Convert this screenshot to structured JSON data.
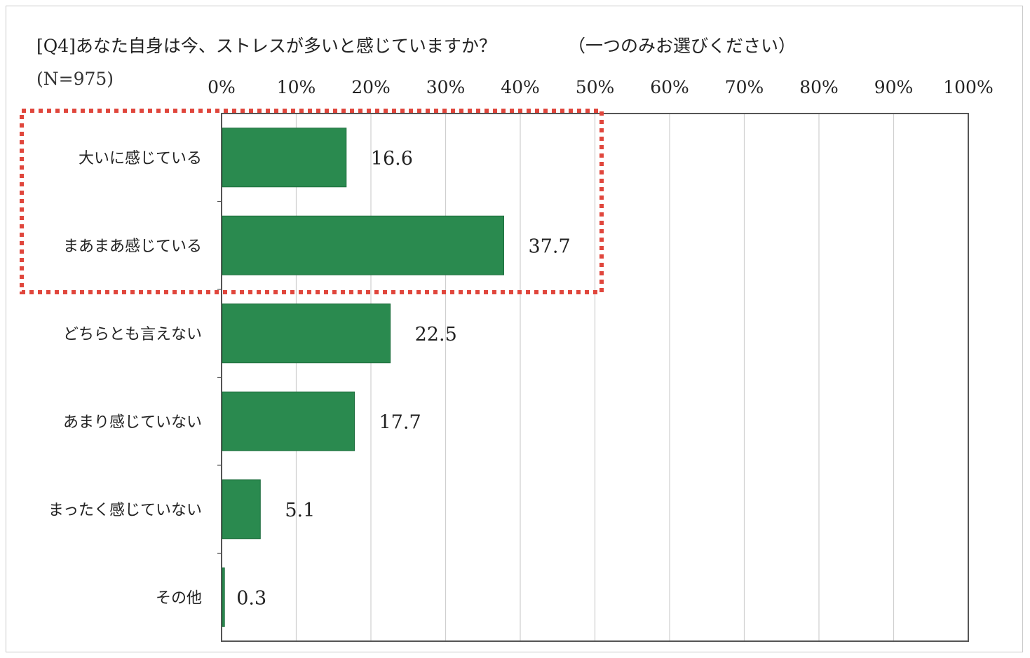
{
  "chart_data": {
    "type": "bar",
    "orientation": "horizontal",
    "title": "[Q4]あなた自身は今、ストレスが多いと感じていますか？",
    "title_note": "（一つのみお選びください）",
    "sample_size": "(N=975)",
    "categories": [
      "大いに感じている",
      "まあまあ感じている",
      "どちらとも言えない",
      "あまり感じていない",
      "まったく感じていない",
      "その他"
    ],
    "values": [
      16.6,
      37.7,
      22.5,
      17.7,
      5.1,
      0.3
    ],
    "value_labels": [
      "16.6",
      "37.7",
      "22.5",
      "17.7",
      "5.1",
      "0.3"
    ],
    "xlim": [
      0,
      100
    ],
    "x_ticks": [
      0,
      10,
      20,
      30,
      40,
      50,
      60,
      70,
      80,
      90,
      100
    ],
    "x_tick_labels": [
      "0%",
      "10%",
      "20%",
      "30%",
      "40%",
      "50%",
      "60%",
      "70%",
      "80%",
      "90%",
      "100%"
    ],
    "grid": true,
    "bar_color": "#2a8a4f",
    "highlight": {
      "categories": [
        "大いに感じている",
        "まあまあ感じている"
      ],
      "color": "#e0463c",
      "style": "dotted"
    }
  }
}
